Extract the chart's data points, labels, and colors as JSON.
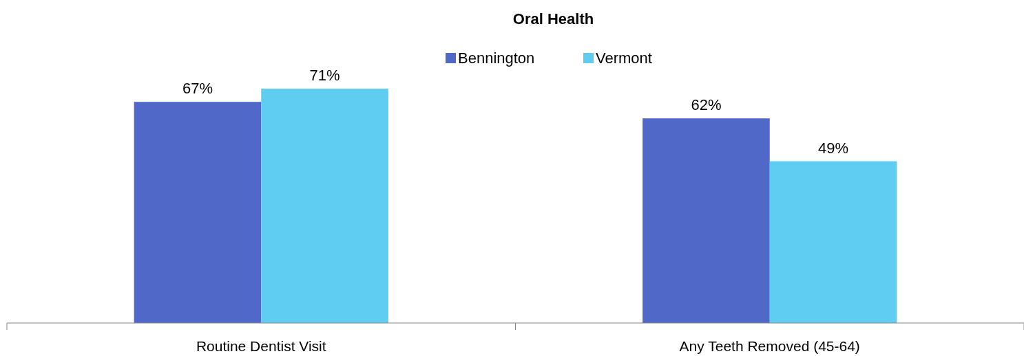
{
  "chart_data": {
    "type": "bar",
    "title": "Oral Health",
    "categories": [
      "Routine Dentist Visit",
      "Any Teeth Removed (45-64)"
    ],
    "series": [
      {
        "name": "Bennington",
        "color": "#5068c8",
        "values": [
          67,
          62
        ],
        "value_labels": [
          "67%",
          "62%"
        ]
      },
      {
        "name": "Vermont",
        "color": "#5fcdf2",
        "values": [
          71,
          49
        ],
        "value_labels": [
          "71%",
          "49%"
        ]
      }
    ],
    "legend": "top"
  }
}
